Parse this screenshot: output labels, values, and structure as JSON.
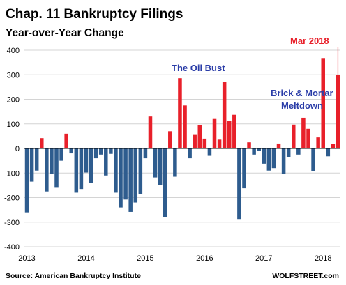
{
  "chart_data": {
    "type": "bar",
    "title": "Chap. 11 Bankruptcy Filings",
    "subtitle": "Year-over-Year Change",
    "ylim": [
      -400,
      400
    ],
    "yticks": [
      400,
      300,
      200,
      100,
      0,
      -100,
      -200,
      -300,
      -400
    ],
    "x_tick_labels": [
      "2013",
      "2014",
      "2015",
      "2016",
      "2017",
      "2018"
    ],
    "grid": true,
    "colors": {
      "positive": "#e8202a",
      "negative": "#2e5c8e"
    },
    "values": [
      -260,
      -135,
      -90,
      42,
      -175,
      -105,
      -160,
      -50,
      60,
      -20,
      -180,
      -165,
      -98,
      -140,
      -40,
      -25,
      -110,
      -22,
      -180,
      -240,
      -208,
      -258,
      -220,
      -185,
      -40,
      130,
      -118,
      -150,
      -280,
      70,
      -115,
      286,
      175,
      -40,
      55,
      95,
      40,
      -30,
      120,
      36,
      270,
      113,
      137,
      -290,
      -162,
      25,
      -25,
      -10,
      -62,
      -90,
      -80,
      20,
      -105,
      -35,
      97,
      -25,
      125,
      80,
      -92,
      45,
      368,
      -32,
      18,
      298
    ],
    "annotations": {
      "oil_bust": "The Oil Bust",
      "brick_line1": "Brick & Mortar",
      "brick_line2": "Meltdown",
      "last": "Mar 2018"
    },
    "source": "Source: American Bankruptcy Institute",
    "brand": "WOLFSTREET.com"
  }
}
